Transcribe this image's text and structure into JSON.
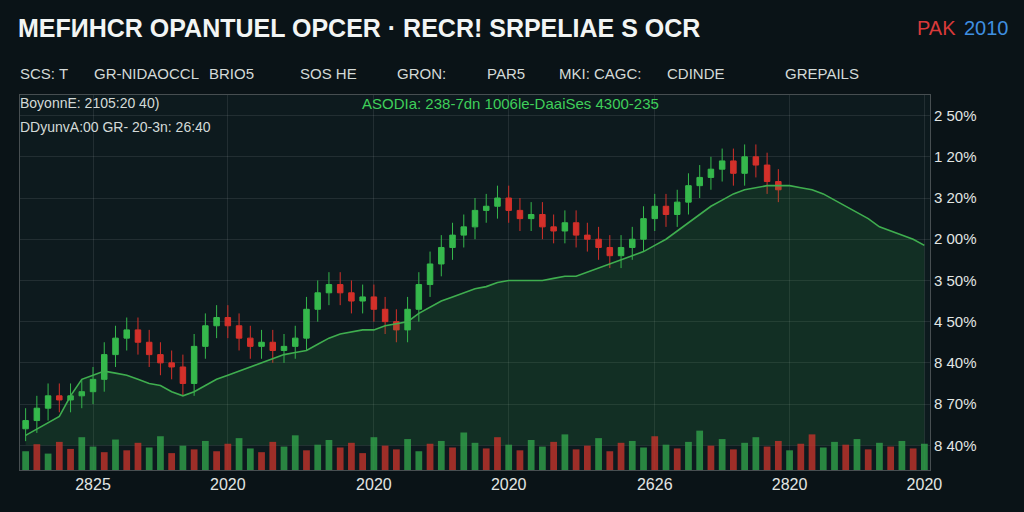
{
  "chart_data": {
    "type": "candlestick",
    "title": "MEFИHCR OPANTUEL OPCER · RECR! SRPELIAE S OCR",
    "badge": [
      "PAK",
      "2010"
    ],
    "labels": [
      "SCS: T",
      "GR-NIDAOCCL",
      "BRIO5",
      "SOS HE",
      "GRON:",
      "PAR5",
      "MKI: CAGC:",
      "CDINDE",
      "GREPAILS"
    ],
    "annotations": [
      "BoyonnE: 2105:20 40)",
      "DDyunvA:00 GR- 20-3n: 26:40",
      "ASODIa: 238-7dn 1006le-DaaiSes 4300-235"
    ],
    "categories": [
      null,
      null,
      null,
      null,
      null,
      null,
      "2825",
      null,
      null,
      null,
      null,
      null,
      null,
      null,
      null,
      null,
      null,
      null,
      "2020",
      null,
      null,
      null,
      null,
      null,
      null,
      null,
      null,
      null,
      null,
      null,
      null,
      "2020",
      null,
      null,
      null,
      null,
      null,
      null,
      null,
      null,
      null,
      null,
      null,
      "2020",
      null,
      null,
      null,
      null,
      null,
      null,
      null,
      null,
      null,
      null,
      null,
      null,
      "2626",
      null,
      null,
      null,
      null,
      null,
      null,
      null,
      null,
      null,
      null,
      null,
      "2820",
      null,
      null,
      null,
      null,
      null,
      null,
      null,
      null,
      null,
      null,
      null,
      "2020"
    ],
    "series": [
      {
        "type": "line",
        "color": "#3fae4f",
        "values": [
          0.24,
          0.4,
          0.55,
          0.7,
          1.2,
          1.6,
          1.7,
          1.8,
          1.75,
          1.7,
          1.6,
          1.5,
          1.45,
          1.3,
          1.2,
          1.3,
          1.45,
          1.6,
          1.7,
          1.8,
          1.9,
          2.0,
          2.1,
          2.2,
          2.25,
          2.3,
          2.45,
          2.6,
          2.7,
          2.75,
          2.8,
          2.8,
          2.9,
          2.95,
          3.0,
          3.2,
          3.35,
          3.5,
          3.6,
          3.7,
          3.8,
          3.85,
          3.95,
          4.0,
          4.0,
          4.0,
          4.0,
          4.05,
          4.1,
          4.1,
          4.2,
          4.3,
          4.4,
          4.5,
          4.6,
          4.7,
          4.85,
          5.0,
          5.2,
          5.4,
          5.6,
          5.8,
          5.95,
          6.1,
          6.2,
          6.25,
          6.3,
          6.3,
          6.3,
          6.25,
          6.2,
          6.1,
          5.95,
          5.8,
          5.65,
          5.5,
          5.3,
          5.2,
          5.1,
          5.0,
          4.85
        ]
      },
      {
        "type": "candlestick",
        "colors": [
          "#35b84c",
          "#d3302a"
        ],
        "open": [
          0.4,
          0.6,
          0.9,
          1.2,
          1.1,
          1.2,
          1.3,
          1.6,
          2.2,
          2.6,
          2.8,
          2.5,
          2.2,
          2.0,
          1.9,
          1.5,
          2.4,
          2.9,
          3.1,
          2.9,
          2.6,
          2.4,
          2.5,
          2.3,
          2.4,
          2.6,
          3.3,
          3.7,
          3.9,
          3.7,
          3.5,
          3.6,
          3.3,
          3.0,
          2.8,
          3.3,
          3.9,
          4.4,
          4.8,
          5.1,
          5.3,
          5.7,
          5.8,
          6.0,
          5.7,
          5.5,
          5.6,
          5.3,
          5.2,
          5.4,
          5.1,
          5.0,
          4.8,
          4.6,
          4.8,
          5.0,
          5.5,
          5.8,
          5.6,
          5.9,
          6.3,
          6.5,
          6.7,
          6.9,
          6.6,
          7.0,
          6.8,
          6.4,
          null,
          null,
          null,
          null,
          null,
          null,
          null,
          null,
          null,
          null,
          null,
          null,
          null
        ],
        "high": [
          0.9,
          1.2,
          1.5,
          1.5,
          1.5,
          1.6,
          1.9,
          2.5,
          2.9,
          3.1,
          3.1,
          2.8,
          2.5,
          2.3,
          2.2,
          2.7,
          3.2,
          3.4,
          3.4,
          3.2,
          2.9,
          2.8,
          2.8,
          2.7,
          2.9,
          3.6,
          4.0,
          4.2,
          4.2,
          4.0,
          3.9,
          3.9,
          3.6,
          3.3,
          3.6,
          4.2,
          4.7,
          5.1,
          5.4,
          5.6,
          6.0,
          6.1,
          6.3,
          6.3,
          6.0,
          5.9,
          5.9,
          5.6,
          5.7,
          5.7,
          5.4,
          5.3,
          5.1,
          5.1,
          5.3,
          5.8,
          6.1,
          6.1,
          6.2,
          6.6,
          6.8,
          7.0,
          7.2,
          7.2,
          7.3,
          7.3,
          7.1,
          6.7,
          null,
          null,
          null,
          null,
          null,
          null,
          null,
          null,
          null,
          null,
          null,
          null,
          null
        ],
        "low": [
          0.1,
          0.3,
          0.6,
          0.8,
          0.8,
          0.9,
          1.0,
          1.3,
          1.9,
          2.3,
          2.2,
          1.9,
          1.7,
          1.6,
          1.2,
          1.2,
          2.1,
          2.6,
          2.6,
          2.3,
          2.1,
          2.1,
          2.0,
          2.0,
          2.1,
          2.3,
          3.0,
          3.4,
          3.4,
          3.2,
          3.2,
          3.0,
          2.7,
          2.5,
          2.5,
          3.0,
          3.6,
          4.1,
          4.5,
          4.8,
          5.0,
          5.4,
          5.5,
          5.4,
          5.2,
          5.2,
          5.0,
          4.9,
          4.9,
          4.8,
          4.7,
          4.5,
          4.3,
          4.3,
          4.5,
          4.7,
          5.2,
          5.3,
          5.3,
          5.6,
          6.0,
          6.2,
          6.4,
          6.3,
          6.3,
          6.5,
          6.1,
          5.9,
          null,
          null,
          null,
          null,
          null,
          null,
          null,
          null,
          null,
          null,
          null,
          null,
          null
        ],
        "close": [
          0.6,
          0.9,
          1.2,
          1.1,
          1.2,
          1.3,
          1.6,
          2.2,
          2.6,
          2.8,
          2.5,
          2.2,
          2.0,
          1.9,
          1.5,
          2.4,
          2.9,
          3.1,
          2.9,
          2.6,
          2.4,
          2.5,
          2.3,
          2.4,
          2.6,
          3.3,
          3.7,
          3.9,
          3.7,
          3.5,
          3.6,
          3.3,
          3.0,
          2.8,
          3.3,
          3.9,
          4.4,
          4.8,
          5.1,
          5.3,
          5.7,
          5.8,
          6.0,
          5.7,
          5.5,
          5.6,
          5.3,
          5.2,
          5.4,
          5.1,
          5.0,
          4.8,
          4.6,
          4.8,
          5.0,
          5.5,
          5.8,
          5.6,
          5.9,
          6.3,
          6.5,
          6.7,
          6.9,
          6.6,
          7.0,
          6.8,
          6.4,
          6.2,
          null,
          null,
          null,
          null,
          null,
          null,
          null,
          null,
          null,
          null,
          null,
          null,
          null
        ]
      },
      {
        "type": "bar",
        "axis": "y2",
        "values": [
          40,
          55,
          35,
          60,
          45,
          70,
          50,
          38,
          65,
          42,
          58,
          48,
          72,
          36,
          52,
          44,
          62,
          40,
          56,
          68,
          46,
          38,
          60,
          50,
          74,
          42,
          54,
          64,
          48,
          58,
          36,
          70,
          52,
          44,
          66,
          40,
          56,
          62,
          48,
          80,
          58,
          46,
          70,
          54,
          42,
          64,
          50,
          60,
          76,
          44,
          52,
          68,
          40,
          58,
          62,
          48,
          72,
          54,
          46,
          60,
          84,
          52,
          66,
          44,
          58,
          70,
          50,
          62,
          42,
          56,
          76,
          48,
          60,
          54,
          66,
          44,
          58,
          50,
          62,
          46,
          56
        ],
        "colors": [
          "#2f9a48",
          "#b8322a",
          "#2f9a48",
          "#b8322a",
          "#b8322a",
          "#2f9a48",
          "#2f9a48",
          "#b8322a",
          "#2f9a48",
          "#b8322a",
          "#b8322a",
          "#2f9a48",
          "#2f9a48",
          "#b8322a",
          "#2f9a48",
          "#b8322a",
          "#2f9a48",
          "#b8322a",
          "#b8322a",
          "#2f9a48",
          "#2f9a48",
          "#b8322a",
          "#b8322a",
          "#2f9a48",
          "#2f9a48",
          "#b8322a",
          "#2f9a48",
          "#2f9a48",
          "#b8322a",
          "#b8322a",
          "#b8322a",
          "#2f9a48",
          "#b8322a",
          "#b8322a",
          "#2f9a48",
          "#2f9a48",
          "#b8322a",
          "#2f9a48",
          "#b8322a",
          "#2f9a48",
          "#2f9a48",
          "#b8322a",
          "#b8322a",
          "#2f9a48",
          "#b8322a",
          "#2f9a48",
          "#2f9a48",
          "#b8322a",
          "#2f9a48",
          "#b8322a",
          "#b8322a",
          "#2f9a48",
          "#b8322a",
          "#b8322a",
          "#2f9a48",
          "#2f9a48",
          "#b8322a",
          "#2f9a48",
          "#b8322a",
          "#2f9a48",
          "#2f9a48",
          "#b8322a",
          "#2f9a48",
          "#b8322a",
          "#2f9a48",
          "#2f9a48",
          "#b8322a",
          "#b8322a",
          "#2f9a48",
          "#b8322a",
          "#b8322a",
          "#2f9a48",
          "#2f9a48",
          "#b8322a",
          "#2f9a48",
          "#b8322a",
          "#2f9a48",
          "#b8322a",
          "#2f9a48",
          "#b8322a",
          "#2f9a48"
        ]
      }
    ],
    "ylim": [
      -0.6,
      8.5
    ],
    "yticks": [
      {
        "value": 8,
        "label": "2 50%"
      },
      {
        "value": 7,
        "label": "1 20%"
      },
      {
        "value": 6,
        "label": "3 20%"
      },
      {
        "value": 5,
        "label": "2 00%"
      },
      {
        "value": 4,
        "label": "3 50%"
      },
      {
        "value": 3,
        "label": "4 50%"
      },
      {
        "value": 2,
        "label": "8 40%"
      },
      {
        "value": 1,
        "label": "8 70%"
      },
      {
        "value": 0,
        "label": "8 40%"
      }
    ],
    "y2lim": [
      0,
      800
    ],
    "y2ticks": [],
    "grid": true
  }
}
